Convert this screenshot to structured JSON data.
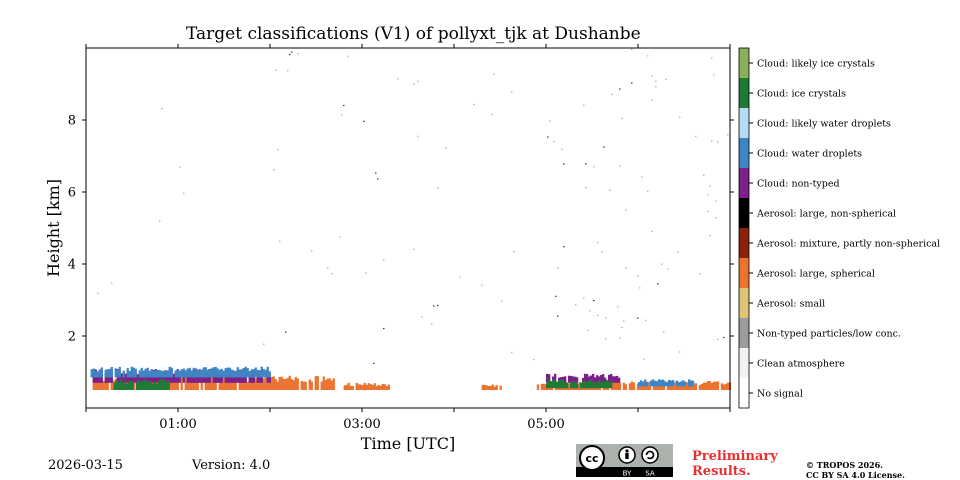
{
  "chart_data": {
    "type": "heatmap",
    "title": "Target classifications (V1) of pollyxt_tjk at Dushanbe",
    "xlabel": "Time [UTC]",
    "ylabel": "Height [km]",
    "xlim": [
      0,
      7
    ],
    "ylim": [
      0,
      10
    ],
    "x_ticks": [
      1,
      3,
      5
    ],
    "x_tick_labels": [
      "01:00",
      "03:00",
      "05:00"
    ],
    "y_ticks": [
      2,
      4,
      6,
      8
    ],
    "y_tick_labels": [
      "2",
      "4",
      "6",
      "8"
    ],
    "colorbar": [
      {
        "label": "Cloud: likely ice crystals",
        "color": "#8ab05a"
      },
      {
        "label": "Cloud: ice crystals",
        "color": "#1e7a34"
      },
      {
        "label": "Cloud: likely water droplets",
        "color": "#b5dcf4"
      },
      {
        "label": "Cloud: water droplets",
        "color": "#3f85c4"
      },
      {
        "label": "Cloud: non-typed",
        "color": "#7d1f8a"
      },
      {
        "label": "Aerosol: large, non-spherical",
        "color": "#000000"
      },
      {
        "label": "Aerosol: mixture, partly non-spherical",
        "color": "#8a2309"
      },
      {
        "label": "Aerosol: large, spherical",
        "color": "#ec7230"
      },
      {
        "label": "Aerosol: small",
        "color": "#dfc473"
      },
      {
        "label": "Non-typed particles/low conc.",
        "color": "#9c9c9c"
      },
      {
        "label": "Clean atmosphere",
        "color": "#f3f3f3"
      },
      {
        "label": "No signal",
        "color": "#ffffff"
      }
    ],
    "features": [
      {
        "class": "Aerosol: large, spherical",
        "time_start": 0.05,
        "time_end": 2.7,
        "height_bottom": 0.5,
        "height_top": 0.9
      },
      {
        "class": "Cloud: non-typed",
        "time_start": 0.05,
        "time_end": 2.0,
        "height_bottom": 0.7,
        "height_top": 1.1
      },
      {
        "class": "Cloud: water droplets",
        "time_start": 0.05,
        "time_end": 2.0,
        "height_bottom": 0.85,
        "height_top": 1.15
      },
      {
        "class": "Cloud: ice crystals",
        "time_start": 0.3,
        "time_end": 0.9,
        "height_bottom": 0.5,
        "height_top": 0.8
      },
      {
        "class": "Aerosol: large, spherical",
        "time_start": 2.8,
        "time_end": 3.3,
        "height_bottom": 0.5,
        "height_top": 0.7
      },
      {
        "class": "Aerosol: large, spherical",
        "time_start": 4.3,
        "time_end": 4.5,
        "height_bottom": 0.5,
        "height_top": 0.65
      },
      {
        "class": "Aerosol: large, spherical",
        "time_start": 4.9,
        "time_end": 7.0,
        "height_bottom": 0.5,
        "height_top": 0.75
      },
      {
        "class": "Cloud: non-typed",
        "time_start": 5.0,
        "time_end": 5.8,
        "height_bottom": 0.7,
        "height_top": 0.95
      },
      {
        "class": "Cloud: ice crystals",
        "time_start": 5.0,
        "time_end": 5.7,
        "height_bottom": 0.55,
        "height_top": 0.8
      },
      {
        "class": "Cloud: water droplets",
        "time_start": 6.0,
        "time_end": 6.6,
        "height_bottom": 0.6,
        "height_top": 0.8
      },
      {
        "class": "Non-typed particles/low conc.",
        "time_start": 0.1,
        "time_end": 7.0,
        "height_bottom": 1.2,
        "height_top": 10.0
      }
    ]
  },
  "footer": {
    "date": "2026-03-15",
    "version": "Version: 4.0",
    "preliminary": "Preliminary Results.",
    "copyright": "© TROPOS 2026.",
    "license": "CC BY SA 4.0 License.",
    "badge_cc": "cc",
    "badge_by": "BY",
    "badge_sa": "SA"
  }
}
